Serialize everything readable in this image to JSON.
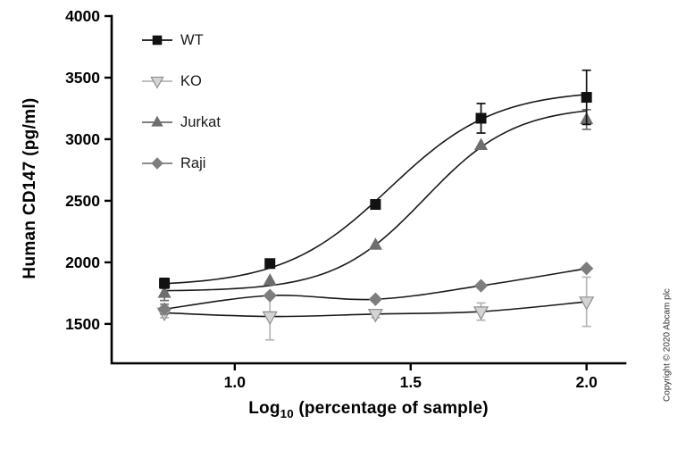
{
  "copyright_text": "Copyright © 2020 Abcam plc",
  "chart_data": {
    "type": "scatter",
    "title": "",
    "xlabel": {
      "pre": "Log",
      "sub": "10",
      "post": " (percentage of sample)"
    },
    "ylabel": "Human CD147 (pg/ml)",
    "x": [
      0.8,
      1.1,
      1.4,
      1.7,
      2.0
    ],
    "xlim": [
      0.65,
      2.11
    ],
    "ylim": [
      1180,
      4000
    ],
    "xticks": [
      1.0,
      1.5,
      2.0
    ],
    "xtick_labels": [
      "1.0",
      "1.5",
      "2.0"
    ],
    "yticks": [
      1500,
      2000,
      2500,
      3000,
      3500,
      4000
    ],
    "grid": false,
    "legend_position": "top-left-inside",
    "curve_color": "#1a1a1a",
    "draw_order": [
      1,
      3,
      2,
      0
    ],
    "series": [
      {
        "name": "WT",
        "marker": "square",
        "color": "#111111",
        "ecolor": "#111111",
        "values": [
          1830,
          1990,
          2470,
          3170,
          3340
        ],
        "errors": [
          40,
          0,
          0,
          120,
          220
        ],
        "curve": "sigmoid",
        "fit": {
          "bottom": 1805,
          "top": 3400,
          "ec50": 1.44,
          "hill": 2.9
        }
      },
      {
        "name": "KO",
        "marker": "triangle-down",
        "color": "#d4d4d4",
        "edge": "#8f8f8f",
        "ecolor": "#b5b5b5",
        "values": [
          1590,
          1560,
          1580,
          1600,
          1680
        ],
        "errors": [
          40,
          190,
          30,
          70,
          200
        ],
        "curve": "spline"
      },
      {
        "name": "Jurkat",
        "marker": "triangle-up",
        "color": "#6e6e6e",
        "ecolor": "#6e6e6e",
        "values": [
          1750,
          1850,
          2140,
          2950,
          3160
        ],
        "errors": [
          60,
          0,
          0,
          0,
          80
        ],
        "curve": "sigmoid",
        "fit": {
          "bottom": 1765,
          "top": 3270,
          "ec50": 1.54,
          "hill": 3.4
        }
      },
      {
        "name": "Raji",
        "marker": "diamond",
        "color": "#7d7d7d",
        "ecolor": "#7d7d7d",
        "values": [
          1620,
          1730,
          1700,
          1810,
          1950
        ],
        "errors": [
          40,
          0,
          0,
          0,
          0
        ],
        "curve": "spline"
      }
    ]
  }
}
